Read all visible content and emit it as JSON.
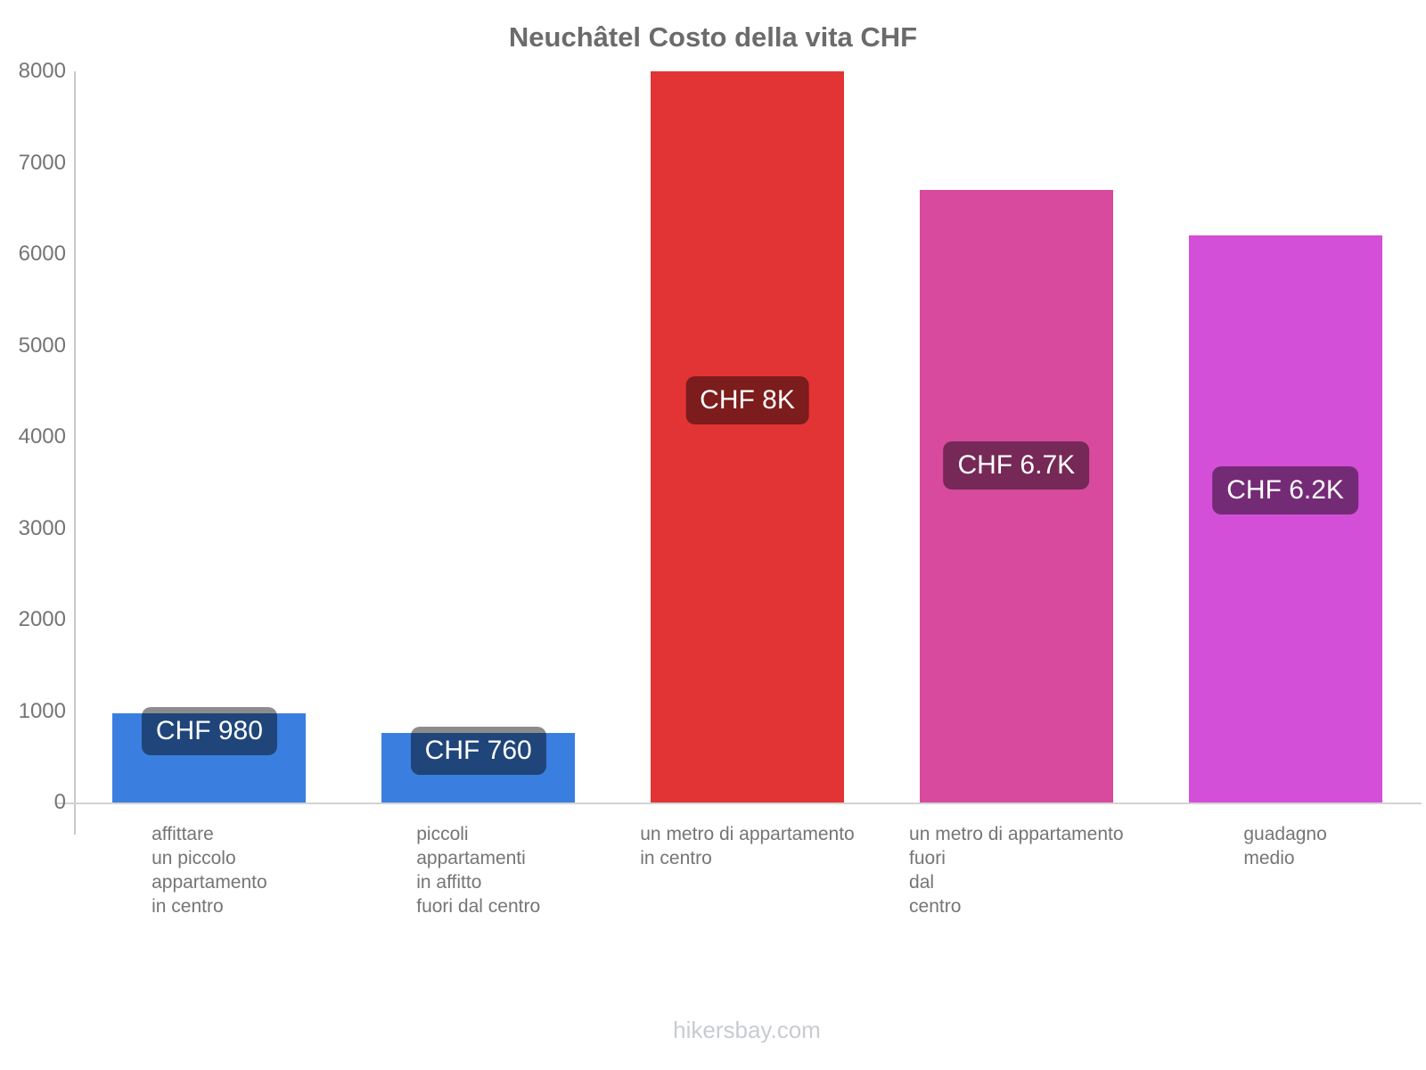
{
  "title": "Neuchâtel Costo della vita CHF",
  "watermark": "hikersbay.com",
  "chart_data": {
    "type": "bar",
    "title": "Neuchâtel Costo della vita CHF",
    "currency": "CHF",
    "categories": [
      [
        "affittare",
        "un piccolo",
        "appartamento",
        "in centro"
      ],
      [
        "piccoli",
        "appartamenti",
        "in affitto",
        "fuori dal centro"
      ],
      [
        "un metro di appartamento",
        "in centro"
      ],
      [
        "un metro di appartamento",
        "fuori",
        "dal",
        "centro"
      ],
      [
        "guadagno",
        "medio"
      ]
    ],
    "values": [
      980,
      760,
      8000,
      6700,
      6200
    ],
    "value_labels": [
      "CHF 980",
      "CHF 760",
      "CHF 8K",
      "CHF 6.7K",
      "CHF 6.2K"
    ],
    "bar_colors": [
      "#3a7fdf",
      "#3a7fdf",
      "#e23434",
      "#d74a9e",
      "#d44fd8"
    ],
    "ylim": [
      0,
      8000
    ],
    "yticks": [
      0,
      1000,
      2000,
      3000,
      4000,
      5000,
      6000,
      7000,
      8000
    ],
    "xlabel": "",
    "ylabel": "",
    "grid": false,
    "legend": false,
    "background": "#ffffff"
  }
}
